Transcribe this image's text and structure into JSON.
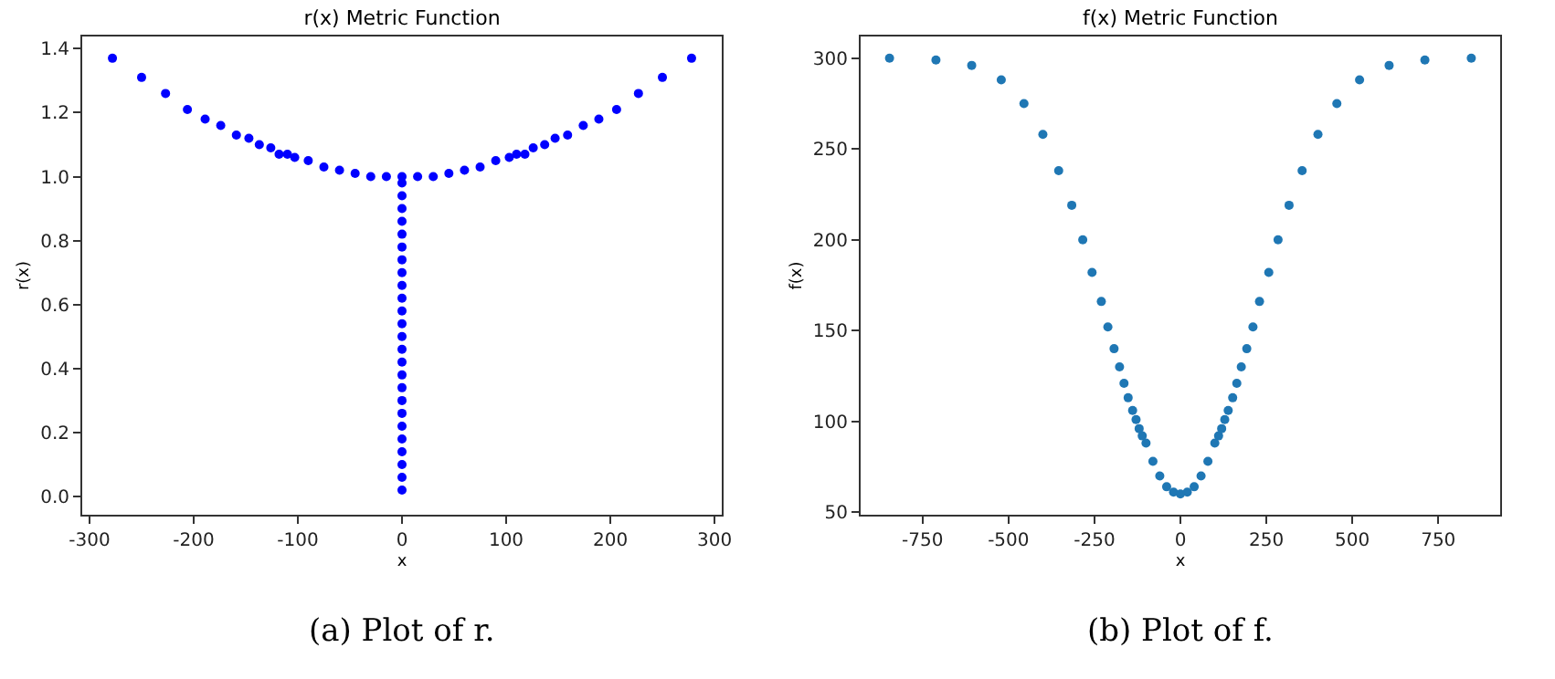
{
  "chart_data": [
    {
      "type": "scatter",
      "title": "r(x) Metric Function",
      "xlabel": "x",
      "ylabel": "r(x)",
      "annotations": [
        "(a) Plot of r."
      ],
      "marker": "circle",
      "grid": false,
      "xlim": [
        -307,
        307
      ],
      "xticks": [
        -300,
        -200,
        -100,
        0,
        100,
        200,
        300
      ],
      "ylim": [
        -0.057,
        1.438
      ],
      "yticks": [
        {
          "value": 0,
          "label": "0.0"
        },
        0.2,
        0.4,
        0.6,
        0.8,
        {
          "value": 1,
          "label": "1.0"
        },
        1.2,
        1.4
      ],
      "series": [
        {
          "color": "#0000ff",
          "x": [
            -278,
            -250,
            -227,
            -206,
            -189,
            -174,
            -159,
            -147,
            -137,
            -126,
            -118,
            -110,
            -103,
            -90,
            -75,
            -60,
            -45,
            -30,
            -15,
            0,
            15,
            30,
            45,
            60,
            75,
            90,
            103,
            110,
            118,
            126,
            137,
            147,
            159,
            174,
            189,
            206,
            227,
            250,
            278,
            0,
            0,
            0,
            0,
            0,
            0,
            0,
            0,
            0,
            0,
            0,
            0,
            0,
            0,
            0,
            0,
            0,
            0,
            0,
            0,
            0,
            0,
            0,
            0,
            0
          ],
          "values": [
            1.37,
            1.31,
            1.26,
            1.21,
            1.18,
            1.16,
            1.13,
            1.12,
            1.1,
            1.09,
            1.07,
            1.07,
            1.06,
            1.05,
            1.03,
            1.02,
            1.01,
            1.0,
            1.0,
            1.0,
            1.0,
            1.0,
            1.01,
            1.02,
            1.03,
            1.05,
            1.06,
            1.07,
            1.07,
            1.09,
            1.1,
            1.12,
            1.13,
            1.16,
            1.18,
            1.21,
            1.26,
            1.31,
            1.37,
            0.02,
            0.06,
            0.1,
            0.14,
            0.18,
            0.22,
            0.26,
            0.3,
            0.34,
            0.38,
            0.42,
            0.46,
            0.5,
            0.54,
            0.58,
            0.62,
            0.66,
            0.7,
            0.74,
            0.78,
            0.82,
            0.86,
            0.9,
            0.94,
            0.98
          ]
        }
      ]
    },
    {
      "type": "scatter",
      "title": "f(x) Metric Function",
      "xlabel": "x",
      "ylabel": "f(x)",
      "annotations": [
        "(b) Plot of f."
      ],
      "marker": "circle",
      "grid": false,
      "xlim": [
        -930,
        930
      ],
      "xticks": [
        -750,
        -500,
        -250,
        0,
        250,
        500,
        750
      ],
      "ylim": [
        48.6,
        311.9
      ],
      "yticks": [
        50,
        100,
        150,
        200,
        250,
        300
      ],
      "series": [
        {
          "color": "#1f77b4",
          "x": [
            -846,
            -711,
            -607,
            -521,
            -455,
            -400,
            -354,
            -316,
            -284,
            -257,
            -230,
            -211,
            -193,
            -177,
            -164,
            -152,
            -139,
            -129,
            -120,
            -111,
            -100,
            -80,
            -60,
            -40,
            -20,
            0,
            20,
            40,
            60,
            80,
            100,
            111,
            120,
            129,
            139,
            152,
            164,
            177,
            193,
            211,
            230,
            257,
            284,
            316,
            354,
            400,
            455,
            521,
            607,
            711,
            846
          ],
          "values": [
            300,
            299,
            296,
            288,
            275,
            258,
            238,
            219,
            200,
            182,
            166,
            152,
            140,
            130,
            121,
            113,
            106,
            101,
            96,
            92,
            88,
            78,
            70,
            64,
            61,
            60,
            61,
            64,
            70,
            78,
            88,
            92,
            96,
            101,
            106,
            113,
            121,
            130,
            140,
            152,
            166,
            182,
            200,
            219,
            238,
            258,
            275,
            288,
            296,
            299,
            300
          ]
        }
      ]
    }
  ]
}
